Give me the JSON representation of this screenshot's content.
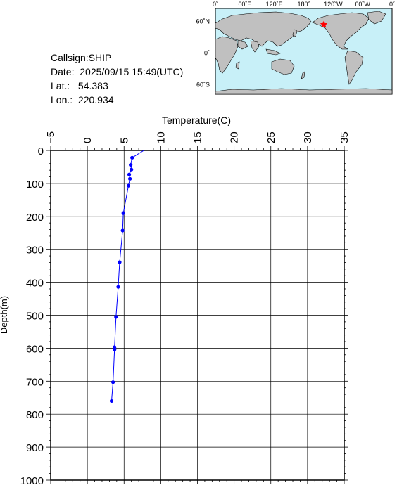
{
  "header": {
    "callsign": "Callsign:SHIP",
    "date": "Date:  2025/09/15 15:49(UTC)",
    "lat": "Lat.:   54.383",
    "lon": "Lon.:  220.934"
  },
  "map": {
    "lon_labels": [
      "0˚",
      "60˚E",
      "120˚E",
      "180˚",
      "120˚W",
      "60˚W",
      "0˚"
    ],
    "lat_labels": [
      "60˚N",
      "0˚",
      "60˚S"
    ],
    "marker_lon": 220.934,
    "marker_lat": 54.383,
    "colors": {
      "ocean": "#c8f0f8",
      "land": "#c0c0c0",
      "marker": "#ff0000"
    }
  },
  "chart_data": {
    "type": "line",
    "xlabel": "Temperature(C)",
    "ylabel": "Depth(m)",
    "xlim": [
      -5,
      35
    ],
    "ylim": [
      1000,
      0
    ],
    "x_ticks": [
      -5,
      0,
      5,
      10,
      15,
      20,
      25,
      30,
      35
    ],
    "y_ticks": [
      0,
      100,
      200,
      300,
      400,
      500,
      600,
      700,
      800,
      900,
      1000
    ],
    "grid": true,
    "color": "#0000ff",
    "series": [
      {
        "x": [
          7.7,
          6.1,
          5.9,
          6.0,
          5.7,
          5.8,
          5.6,
          4.9,
          4.8,
          4.4,
          4.2,
          3.9,
          3.7,
          3.7,
          3.5,
          3.3
        ],
        "y": [
          0,
          22,
          44,
          58,
          73,
          86,
          107,
          190,
          243,
          339,
          414,
          505,
          597,
          604,
          703,
          760
        ]
      }
    ]
  }
}
